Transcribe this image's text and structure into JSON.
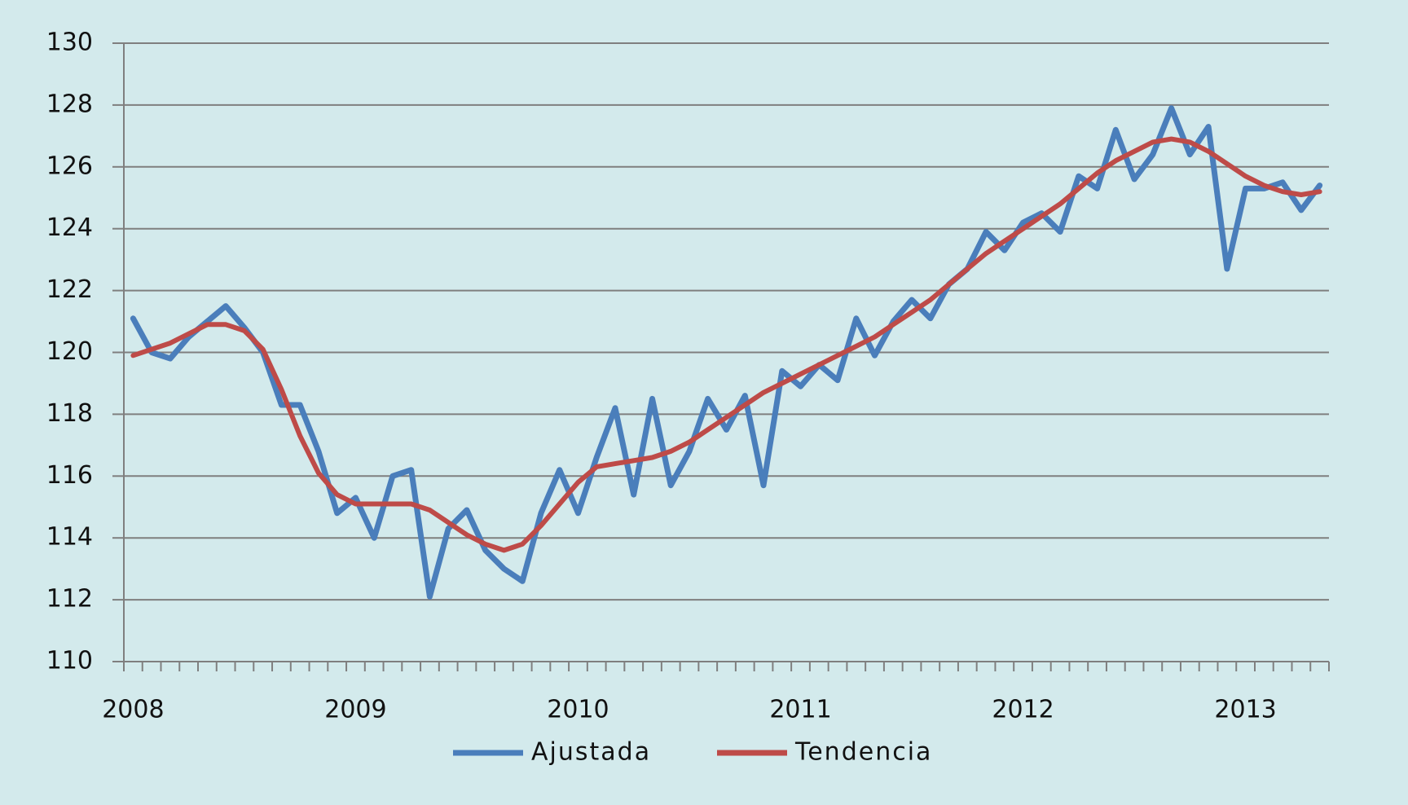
{
  "chart_data": {
    "type": "line",
    "categories": [
      "2008",
      null,
      null,
      null,
      null,
      null,
      null,
      null,
      null,
      null,
      null,
      null,
      "2009",
      null,
      null,
      null,
      null,
      null,
      null,
      null,
      null,
      null,
      null,
      null,
      "2010",
      null,
      null,
      null,
      null,
      null,
      null,
      null,
      null,
      null,
      null,
      null,
      "2011",
      null,
      null,
      null,
      null,
      null,
      null,
      null,
      null,
      null,
      null,
      null,
      "2012",
      null,
      null,
      null,
      null,
      null,
      null,
      null,
      null,
      null,
      null,
      null,
      "2013",
      null,
      null,
      null,
      null
    ],
    "series": [
      {
        "name": "Ajustada",
        "color": "#4a7ebb",
        "values": [
          121.1,
          120.0,
          119.8,
          120.5,
          121.0,
          121.5,
          120.8,
          120.0,
          118.3,
          118.3,
          116.8,
          114.8,
          115.3,
          114.0,
          116.0,
          116.2,
          112.1,
          114.3,
          114.9,
          113.6,
          113.0,
          112.6,
          114.8,
          116.2,
          114.8,
          116.6,
          118.2,
          115.4,
          118.5,
          115.7,
          116.8,
          118.5,
          117.5,
          118.6,
          115.7,
          119.4,
          118.9,
          119.6,
          119.1,
          121.1,
          119.9,
          121.0,
          121.7,
          121.1,
          122.2,
          122.7,
          123.9,
          123.3,
          124.2,
          124.5,
          123.9,
          125.7,
          125.3,
          127.2,
          125.6,
          126.4,
          127.9,
          126.4,
          127.3,
          122.7,
          125.3,
          125.3,
          125.5,
          124.6,
          125.4
        ]
      },
      {
        "name": "Tendencia",
        "color": "#be4b48",
        "values": [
          119.9,
          120.1,
          120.3,
          120.6,
          120.9,
          120.9,
          120.7,
          120.1,
          118.8,
          117.3,
          116.1,
          115.4,
          115.1,
          115.1,
          115.1,
          115.1,
          114.9,
          114.5,
          114.1,
          113.8,
          113.6,
          113.8,
          114.4,
          115.1,
          115.8,
          116.3,
          116.4,
          116.5,
          116.6,
          116.8,
          117.1,
          117.5,
          117.9,
          118.3,
          118.7,
          119.0,
          119.3,
          119.6,
          119.9,
          120.2,
          120.5,
          120.9,
          121.3,
          121.7,
          122.2,
          122.7,
          123.2,
          123.6,
          124.0,
          124.4,
          124.8,
          125.3,
          125.8,
          126.2,
          126.5,
          126.8,
          126.9,
          126.8,
          126.5,
          126.1,
          125.7,
          125.4,
          125.2,
          125.1,
          125.2
        ]
      }
    ],
    "ylim": [
      110,
      130
    ],
    "yticks": [
      110,
      112,
      114,
      116,
      118,
      120,
      122,
      124,
      126,
      128,
      130
    ],
    "grid": true,
    "legend": "bottom"
  }
}
